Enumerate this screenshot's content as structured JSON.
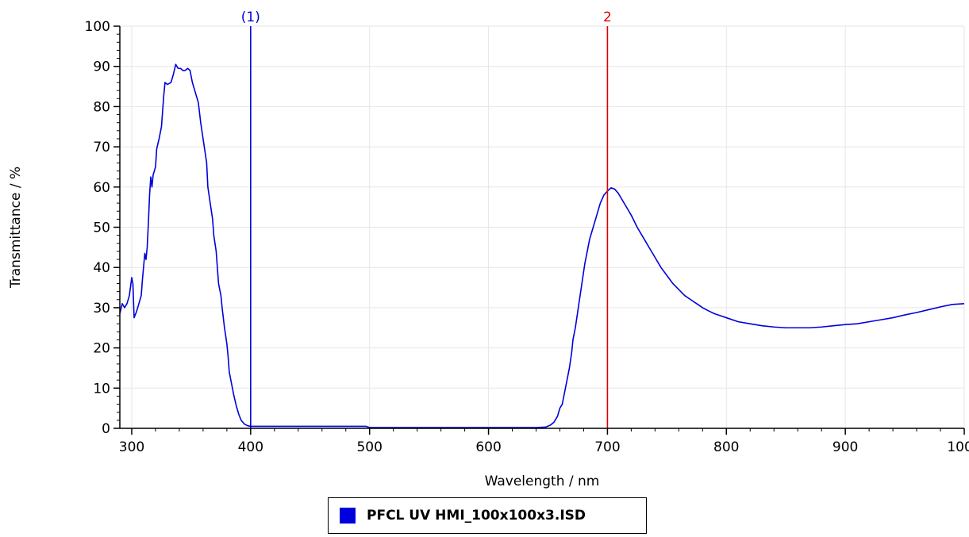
{
  "chart_data": {
    "type": "line",
    "xlabel": "Wavelength / nm",
    "ylabel": "Transmittance / %",
    "xlim": [
      290,
      1000
    ],
    "ylim": [
      0,
      100
    ],
    "x_ticks": [
      300,
      400,
      500,
      600,
      700,
      800,
      900,
      1000
    ],
    "y_ticks": [
      0,
      10,
      20,
      30,
      40,
      50,
      60,
      70,
      80,
      90,
      100
    ],
    "grid": true,
    "legend_position": "bottom-center",
    "series": [
      {
        "name": "PFCL UV HMI_100x100x3.ISD",
        "color": "#0000dd",
        "points": [
          [
            290,
            28.5
          ],
          [
            292,
            31
          ],
          [
            294,
            30
          ],
          [
            296,
            31
          ],
          [
            298,
            33
          ],
          [
            300,
            37.5
          ],
          [
            301,
            36
          ],
          [
            302,
            27.5
          ],
          [
            304,
            29
          ],
          [
            306,
            31
          ],
          [
            308,
            33
          ],
          [
            309,
            37
          ],
          [
            311,
            43.5
          ],
          [
            312,
            42
          ],
          [
            313,
            45
          ],
          [
            314,
            51
          ],
          [
            315,
            58
          ],
          [
            316,
            62.5
          ],
          [
            317,
            60
          ],
          [
            318,
            63
          ],
          [
            320,
            65
          ],
          [
            321,
            69.5
          ],
          [
            323,
            72
          ],
          [
            325,
            75
          ],
          [
            326,
            79
          ],
          [
            327,
            83
          ],
          [
            328,
            86
          ],
          [
            330,
            85.5
          ],
          [
            333,
            86
          ],
          [
            335,
            88
          ],
          [
            337,
            90.5
          ],
          [
            339,
            89.5
          ],
          [
            341,
            89.5
          ],
          [
            343,
            89
          ],
          [
            345,
            89
          ],
          [
            347,
            89.5
          ],
          [
            349,
            89
          ],
          [
            351,
            86
          ],
          [
            354,
            83
          ],
          [
            356,
            81
          ],
          [
            358,
            76
          ],
          [
            360,
            72
          ],
          [
            362,
            68
          ],
          [
            363,
            66
          ],
          [
            364,
            60
          ],
          [
            366,
            56
          ],
          [
            368,
            52
          ],
          [
            369,
            48
          ],
          [
            371,
            44
          ],
          [
            372,
            40
          ],
          [
            373,
            36
          ],
          [
            375,
            33
          ],
          [
            376,
            30
          ],
          [
            378,
            25
          ],
          [
            380,
            21
          ],
          [
            381,
            18
          ],
          [
            382,
            14
          ],
          [
            384,
            11
          ],
          [
            386,
            8
          ],
          [
            388,
            5.5
          ],
          [
            390,
            3.5
          ],
          [
            392,
            2
          ],
          [
            395,
            1
          ],
          [
            398,
            0.6
          ],
          [
            400,
            0.5
          ],
          [
            420,
            0.5
          ],
          [
            450,
            0.5
          ],
          [
            490,
            0.5
          ],
          [
            497,
            0.5
          ],
          [
            500,
            0.2
          ],
          [
            550,
            0.2
          ],
          [
            600,
            0.2
          ],
          [
            640,
            0.2
          ],
          [
            648,
            0.3
          ],
          [
            652,
            0.8
          ],
          [
            655,
            1.5
          ],
          [
            658,
            3
          ],
          [
            660,
            5
          ],
          [
            662,
            6
          ],
          [
            664,
            9
          ],
          [
            666,
            12
          ],
          [
            668,
            15
          ],
          [
            670,
            19
          ],
          [
            671,
            22
          ],
          [
            673,
            25
          ],
          [
            675,
            29
          ],
          [
            677,
            33
          ],
          [
            679,
            37
          ],
          [
            681,
            41
          ],
          [
            683,
            44
          ],
          [
            685,
            47
          ],
          [
            688,
            50
          ],
          [
            691,
            53
          ],
          [
            694,
            56
          ],
          [
            697,
            58
          ],
          [
            700,
            59
          ],
          [
            703,
            59.8
          ],
          [
            706,
            59.5
          ],
          [
            709,
            58.5
          ],
          [
            712,
            57
          ],
          [
            716,
            55
          ],
          [
            720,
            53
          ],
          [
            725,
            50
          ],
          [
            730,
            47.5
          ],
          [
            735,
            45
          ],
          [
            740,
            42.5
          ],
          [
            745,
            40
          ],
          [
            750,
            38
          ],
          [
            755,
            36
          ],
          [
            760,
            34.5
          ],
          [
            765,
            33
          ],
          [
            770,
            32
          ],
          [
            775,
            31
          ],
          [
            780,
            30
          ],
          [
            785,
            29.2
          ],
          [
            790,
            28.5
          ],
          [
            795,
            28
          ],
          [
            800,
            27.5
          ],
          [
            810,
            26.5
          ],
          [
            820,
            26
          ],
          [
            830,
            25.5
          ],
          [
            840,
            25.2
          ],
          [
            850,
            25
          ],
          [
            860,
            25
          ],
          [
            870,
            25
          ],
          [
            880,
            25.2
          ],
          [
            890,
            25.5
          ],
          [
            900,
            25.8
          ],
          [
            910,
            26
          ],
          [
            920,
            26.5
          ],
          [
            930,
            27
          ],
          [
            940,
            27.5
          ],
          [
            950,
            28.2
          ],
          [
            960,
            28.8
          ],
          [
            970,
            29.5
          ],
          [
            980,
            30.2
          ],
          [
            990,
            30.8
          ],
          [
            1000,
            31
          ]
        ]
      }
    ],
    "markers": [
      {
        "label": "(1)",
        "x": 400,
        "color": "#0000dd"
      },
      {
        "label": "2",
        "x": 700,
        "color": "#e00000"
      }
    ]
  }
}
